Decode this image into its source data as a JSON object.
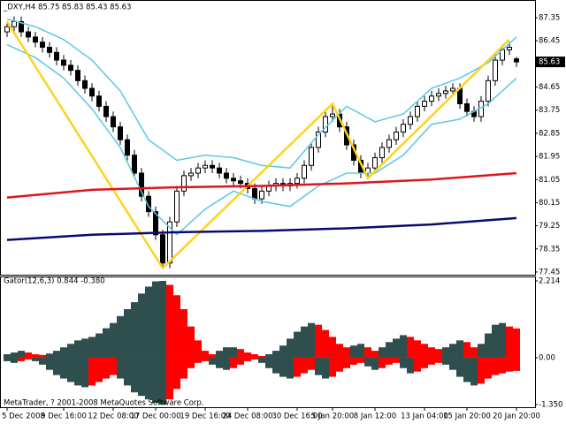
{
  "chart_data": [
    {
      "type": "candlestick",
      "title": "_DXY,H4  85.75 85.83 85.43 85.63",
      "open": [
        86.8,
        87.0,
        87.2,
        86.8,
        86.6,
        86.4,
        86.2,
        86.0,
        85.7,
        85.5,
        85.3,
        84.9,
        84.6,
        84.3,
        83.9,
        83.5,
        83.1,
        82.6,
        82.0,
        81.3,
        80.4,
        79.8,
        78.9,
        77.8,
        79.4,
        80.6,
        81.2,
        81.3,
        81.5,
        81.6,
        81.5,
        81.3,
        81.1,
        81.0,
        80.9,
        80.7,
        80.3,
        80.6,
        80.8,
        80.9,
        80.8,
        80.9,
        81.1,
        81.6,
        82.3,
        82.9,
        83.5,
        83.6,
        83.1,
        82.4,
        81.8,
        81.3,
        81.5,
        81.9,
        82.3,
        82.6,
        82.9,
        83.2,
        83.5,
        83.9,
        84.1,
        84.3,
        84.4,
        84.5,
        84.6,
        84.0,
        83.7,
        83.5,
        84.1,
        84.9,
        85.7,
        86.1,
        85.75
      ],
      "high": [
        87.2,
        87.4,
        87.4,
        87.0,
        86.8,
        86.6,
        86.4,
        86.2,
        85.9,
        85.7,
        85.5,
        85.1,
        84.8,
        84.5,
        84.1,
        83.7,
        83.3,
        82.8,
        82.2,
        81.5,
        80.6,
        80.0,
        79.1,
        79.6,
        80.8,
        81.4,
        81.5,
        81.7,
        81.8,
        81.8,
        81.7,
        81.5,
        81.3,
        81.2,
        81.1,
        80.9,
        80.8,
        81.0,
        81.1,
        81.1,
        81.1,
        81.3,
        81.8,
        82.5,
        83.1,
        83.7,
        84.0,
        83.8,
        83.3,
        82.6,
        82.0,
        81.7,
        82.1,
        82.5,
        82.8,
        83.1,
        83.4,
        83.7,
        84.1,
        84.3,
        84.5,
        84.6,
        84.7,
        84.8,
        84.8,
        84.2,
        83.9,
        84.3,
        85.1,
        85.9,
        86.3,
        86.4,
        85.83
      ],
      "low": [
        86.6,
        86.8,
        86.6,
        86.4,
        86.2,
        86.0,
        85.8,
        85.5,
        85.3,
        85.1,
        84.7,
        84.4,
        84.1,
        83.7,
        83.3,
        82.9,
        82.4,
        81.8,
        81.1,
        80.2,
        79.6,
        78.7,
        77.6,
        77.6,
        79.2,
        80.4,
        81.0,
        81.1,
        81.3,
        81.3,
        81.1,
        80.9,
        80.8,
        80.7,
        80.5,
        80.1,
        80.1,
        80.4,
        80.6,
        80.6,
        80.6,
        80.7,
        80.9,
        81.4,
        82.1,
        82.7,
        83.3,
        82.9,
        82.2,
        81.6,
        81.1,
        81.1,
        81.3,
        81.7,
        82.1,
        82.4,
        82.7,
        83.0,
        83.3,
        83.7,
        83.9,
        84.1,
        84.2,
        84.3,
        83.8,
        83.5,
        83.3,
        83.3,
        83.9,
        84.7,
        85.5,
        85.9,
        85.43
      ],
      "close": [
        87.0,
        87.2,
        86.8,
        86.6,
        86.4,
        86.2,
        86.0,
        85.7,
        85.5,
        85.3,
        84.9,
        84.6,
        84.3,
        83.9,
        83.5,
        83.1,
        82.6,
        82.0,
        81.3,
        80.4,
        79.8,
        78.9,
        77.8,
        79.4,
        80.6,
        81.2,
        81.3,
        81.5,
        81.6,
        81.5,
        81.3,
        81.1,
        81.0,
        80.9,
        80.7,
        80.3,
        80.6,
        80.8,
        80.9,
        80.8,
        80.9,
        81.1,
        81.6,
        82.3,
        82.9,
        83.5,
        83.6,
        83.1,
        82.4,
        81.8,
        81.3,
        81.5,
        81.9,
        82.3,
        82.6,
        82.9,
        83.2,
        83.5,
        83.9,
        84.1,
        84.3,
        84.4,
        84.5,
        84.6,
        84.0,
        83.7,
        83.5,
        84.1,
        84.9,
        85.7,
        86.1,
        86.2,
        85.63
      ],
      "up_color": "#ffffff",
      "down_color": "#000000",
      "outline_color": "#000000",
      "lines": [
        {
          "color": "#5bc8e6",
          "x": [
            0,
            4,
            8,
            12,
            16,
            20,
            24,
            28,
            32,
            36,
            40,
            44,
            48,
            52,
            56,
            60,
            64,
            68,
            72
          ],
          "values": [
            87.3,
            87.0,
            86.5,
            85.7,
            84.5,
            82.6,
            81.8,
            82.0,
            81.9,
            81.6,
            81.5,
            82.8,
            83.9,
            83.3,
            83.6,
            84.6,
            85.0,
            85.6,
            86.6
          ]
        },
        {
          "color": "#5bc8e6",
          "x": [
            0,
            4,
            8,
            12,
            16,
            20,
            24,
            28,
            32,
            36,
            40,
            44,
            48,
            52,
            56,
            60,
            64,
            68,
            72
          ],
          "values": [
            86.3,
            85.8,
            85.0,
            83.8,
            82.3,
            80.0,
            78.9,
            79.9,
            80.6,
            80.2,
            80.0,
            80.8,
            81.3,
            81.3,
            82.0,
            83.2,
            83.4,
            84.0,
            85.0
          ]
        },
        {
          "color": "#ffd21e",
          "x": [
            0,
            22,
            46,
            51,
            71
          ],
          "values": [
            87.2,
            77.6,
            84.0,
            81.1,
            86.5
          ]
        },
        {
          "color": "#e0151b",
          "x": [
            0,
            12,
            24,
            36,
            48,
            60,
            72
          ],
          "values": [
            80.35,
            80.65,
            80.75,
            80.8,
            80.9,
            81.05,
            81.3
          ]
        },
        {
          "color": "#0a0a6e",
          "x": [
            0,
            12,
            24,
            36,
            48,
            60,
            72
          ],
          "values": [
            78.7,
            78.9,
            79.0,
            79.05,
            79.15,
            79.3,
            79.55
          ]
        }
      ],
      "last_price": 85.63,
      "ylim": [
        77.31,
        88.04
      ],
      "yticks": [
        87.35,
        86.45,
        84.65,
        83.75,
        82.85,
        81.95,
        81.05,
        80.15,
        79.25,
        78.35,
        77.45
      ]
    },
    {
      "type": "gator",
      "title": "Gator(12,6,3) 0.844 -0.380",
      "series": [
        {
          "values": [
            0.1,
            0.15,
            0.2,
            0.15,
            0.1,
            0.08,
            0.12,
            0.2,
            0.3,
            0.4,
            0.5,
            0.55,
            0.6,
            0.7,
            0.85,
            1.0,
            1.2,
            1.4,
            1.6,
            1.85,
            2.05,
            2.2,
            2.214,
            2.1,
            1.8,
            1.4,
            0.9,
            0.5,
            0.2,
            0.1,
            0.2,
            0.3,
            0.3,
            0.25,
            0.15,
            0.1,
            0.05,
            0.1,
            0.2,
            0.35,
            0.55,
            0.75,
            0.9,
            1.0,
            0.95,
            0.8,
            0.6,
            0.4,
            0.3,
            0.35,
            0.4,
            0.3,
            0.2,
            0.3,
            0.45,
            0.55,
            0.65,
            0.6,
            0.5,
            0.4,
            0.3,
            0.25,
            0.3,
            0.4,
            0.5,
            0.45,
            0.3,
            0.4,
            0.7,
            0.95,
            1.0,
            0.9,
            0.844
          ]
        },
        {
          "values": [
            -0.1,
            -0.15,
            -0.1,
            -0.05,
            -0.1,
            -0.2,
            -0.35,
            -0.5,
            -0.6,
            -0.7,
            -0.8,
            -0.85,
            -0.8,
            -0.7,
            -0.6,
            -0.5,
            -0.6,
            -0.8,
            -1.0,
            -1.1,
            -1.2,
            -1.3,
            -1.35,
            -1.2,
            -0.9,
            -0.6,
            -0.3,
            -0.15,
            -0.1,
            -0.2,
            -0.3,
            -0.35,
            -0.3,
            -0.2,
            -0.1,
            -0.05,
            -0.15,
            -0.3,
            -0.45,
            -0.55,
            -0.6,
            -0.55,
            -0.45,
            -0.35,
            -0.5,
            -0.6,
            -0.55,
            -0.4,
            -0.3,
            -0.2,
            -0.15,
            -0.25,
            -0.35,
            -0.3,
            -0.2,
            -0.15,
            -0.3,
            -0.45,
            -0.4,
            -0.3,
            -0.2,
            -0.15,
            -0.2,
            -0.35,
            -0.55,
            -0.7,
            -0.8,
            -0.75,
            -0.6,
            -0.5,
            -0.45,
            -0.4,
            -0.38
          ]
        }
      ],
      "up_color": "#2f4f4f",
      "down_color": "#ff0000",
      "ylim": [
        -1.452,
        2.316
      ],
      "yticks": [
        2.214,
        {
          "value": 0,
          "label": "0.00"
        },
        {
          "value": -1.35,
          "label": "-1.350"
        }
      ],
      "xticks": [
        {
          "value": 0,
          "label": "5 Dec 2008"
        },
        {
          "value": 8,
          "label": "9 Dec 16:00"
        },
        {
          "value": 15,
          "label": "12 Dec 08:00"
        },
        {
          "value": 21,
          "label": "17 Dec 00:00"
        },
        {
          "value": 28,
          "label": "19 Dec 16:00"
        },
        {
          "value": 34,
          "label": "24 Dec 08:00"
        },
        {
          "value": 41,
          "label": "30 Dec 16:00"
        },
        {
          "value": 46,
          "label": "5 Jan 20:00"
        },
        {
          "value": 52,
          "label": "8 Jan 12:00"
        },
        {
          "value": 59,
          "label": "13 Jan 04:00"
        },
        {
          "value": 65,
          "label": "15 Jan 20:00"
        },
        {
          "value": 72,
          "label": "20 Jan 20:00"
        }
      ]
    }
  ],
  "footer": "MetaTrader, ? 2001-2008 MetaQuotes Software Corp."
}
